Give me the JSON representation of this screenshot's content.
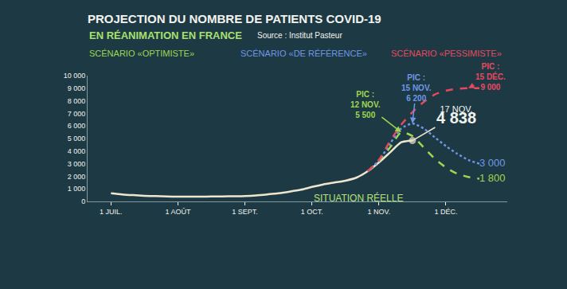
{
  "chart_data": {
    "type": "line",
    "title": "PROJECTION DU NOMBRE DE PATIENTS COVID-19",
    "subtitle": "EN RÉANIMATION EN FRANCE",
    "source": "Source : Institut Pasteur",
    "categories": [
      "1 JUIL.",
      null,
      null,
      null,
      null,
      null,
      "1 AOÛT",
      null,
      null,
      null,
      null,
      null,
      "1 SEPT.",
      null,
      null,
      null,
      null,
      null,
      "1 OCT.",
      null,
      null,
      null,
      null,
      null,
      "1 NOV.",
      null,
      null,
      null,
      null,
      null,
      "1 DÉC.",
      null,
      null,
      null
    ],
    "ylim": [
      0,
      10000
    ],
    "yticks": [
      0,
      {
        "value": 1000,
        "label": "1 000"
      },
      {
        "value": 2000,
        "label": "2 000"
      },
      {
        "value": 3000,
        "label": "3 000"
      },
      {
        "value": 4000,
        "label": "4 000"
      },
      {
        "value": 5000,
        "label": "5 000"
      },
      {
        "value": 6000,
        "label": "6 000"
      },
      {
        "value": 7000,
        "label": "7 000"
      },
      {
        "value": 8000,
        "label": "8 000"
      },
      {
        "value": 9000,
        "label": "9 000"
      },
      {
        "value": 10000,
        "label": "10 000"
      }
    ],
    "grid": false,
    "series": [
      {
        "name": "SITUATION RÉELLE",
        "color": "#efe6cf",
        "line_style": "solid",
        "marker": "circle",
        "values": [
          650,
          560,
          500,
          450,
          420,
          390,
          380,
          380,
          380,
          390,
          400,
          410,
          430,
          480,
          560,
          650,
          780,
          930,
          1150,
          1350,
          1500,
          1650,
          1900,
          2400,
          3100,
          3900,
          4700,
          4838,
          null,
          null,
          null,
          null,
          null,
          null
        ],
        "current": {
          "date": "17 NOV.",
          "value": 4838,
          "value_label": "4 838"
        }
      },
      {
        "name": "SCÉNARIO «OPTIMISTE»",
        "color": "#9fd64f",
        "line_style": "dashed",
        "values": [
          null,
          null,
          null,
          null,
          null,
          null,
          null,
          null,
          null,
          null,
          null,
          null,
          null,
          null,
          null,
          null,
          null,
          null,
          null,
          null,
          null,
          null,
          null,
          2400,
          3200,
          4300,
          5500,
          5200,
          4300,
          3400,
          2700,
          2200,
          1950,
          1800
        ],
        "value_labels": [
          null,
          null,
          null,
          null,
          null,
          null,
          null,
          null,
          null,
          null,
          null,
          null,
          null,
          null,
          null,
          null,
          null,
          null,
          null,
          null,
          null,
          null,
          null,
          null,
          null,
          null,
          null,
          null,
          null,
          null,
          null,
          null,
          null,
          "1 800"
        ],
        "peak": {
          "label": "PIC :",
          "date": "12 NOV.",
          "value": 5500,
          "value_label": "5 500"
        }
      },
      {
        "name": "SCÉNARIO «DE RÉFÉRENCE»",
        "color": "#7096e6",
        "line_style": "dotted",
        "values": [
          null,
          null,
          null,
          null,
          null,
          null,
          null,
          null,
          null,
          null,
          null,
          null,
          null,
          null,
          null,
          null,
          null,
          null,
          null,
          null,
          null,
          null,
          null,
          2400,
          3250,
          4600,
          5800,
          6200,
          5800,
          5100,
          4400,
          3800,
          3300,
          3000
        ],
        "value_labels": [
          null,
          null,
          null,
          null,
          null,
          null,
          null,
          null,
          null,
          null,
          null,
          null,
          null,
          null,
          null,
          null,
          null,
          null,
          null,
          null,
          null,
          null,
          null,
          null,
          null,
          null,
          null,
          null,
          null,
          null,
          null,
          null,
          null,
          "3 000"
        ],
        "peak": {
          "label": "PIC :",
          "date": "15 NOV.",
          "value": 6200,
          "value_label": "6 200"
        }
      },
      {
        "name": "SCÉNARIO «PESSIMISTE»",
        "color": "#e8485e",
        "line_style": "dashed",
        "values": [
          null,
          null,
          null,
          null,
          null,
          null,
          null,
          null,
          null,
          null,
          null,
          null,
          null,
          null,
          null,
          null,
          null,
          null,
          null,
          null,
          null,
          null,
          null,
          2400,
          3300,
          4800,
          6100,
          7100,
          7900,
          8500,
          8800,
          8950,
          9000,
          9000
        ],
        "peak": {
          "label": "PIC :",
          "date": "15 DÉC.",
          "value": 9000,
          "value_label": "9 000"
        }
      }
    ]
  }
}
